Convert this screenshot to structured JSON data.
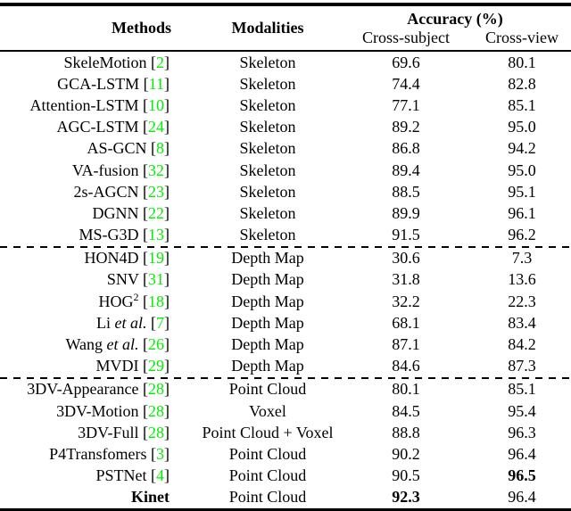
{
  "header": {
    "methods": "Methods",
    "modalities": "Modalities",
    "accuracy": "Accuracy (%)",
    "cross_subject": "Cross-subject",
    "cross_view": "Cross-view"
  },
  "citation_color": "#00f000",
  "cite_open": "[",
  "cite_close": "]",
  "et_al_text": "et al.",
  "groups": [
    {
      "rows": [
        {
          "name": "SkeleMotion",
          "cite": "2",
          "modality": "Skeleton",
          "cs": "69.6",
          "cv": "80.1"
        },
        {
          "name": "GCA-LSTM",
          "cite": "11",
          "modality": "Skeleton",
          "cs": "74.4",
          "cv": "82.8"
        },
        {
          "name": "Attention-LSTM",
          "cite": "10",
          "modality": "Skeleton",
          "cs": "77.1",
          "cv": "85.1"
        },
        {
          "name": "AGC-LSTM",
          "cite": "24",
          "modality": "Skeleton",
          "cs": "89.2",
          "cv": "95.0"
        },
        {
          "name": "AS-GCN",
          "cite": "8",
          "modality": "Skeleton",
          "cs": "86.8",
          "cv": "94.2"
        },
        {
          "name": "VA-fusion",
          "cite": "32",
          "modality": "Skeleton",
          "cs": "89.4",
          "cv": "95.0"
        },
        {
          "name": "2s-AGCN",
          "cite": "23",
          "modality": "Skeleton",
          "cs": "88.5",
          "cv": "95.1"
        },
        {
          "name": "DGNN",
          "cite": "22",
          "modality": "Skeleton",
          "cs": "89.9",
          "cv": "96.1"
        },
        {
          "name": "MS-G3D",
          "cite": "13",
          "modality": "Skeleton",
          "cs": "91.5",
          "cv": "96.2"
        }
      ]
    },
    {
      "rows": [
        {
          "name": "HON4D",
          "cite": "19",
          "modality": "Depth Map",
          "cs": "30.6",
          "cv": "7.3"
        },
        {
          "name": "SNV",
          "cite": "31",
          "modality": "Depth Map",
          "cs": "31.8",
          "cv": "13.6"
        },
        {
          "name": "HOG",
          "sup": "2",
          "cite": "18",
          "modality": "Depth Map",
          "cs": "32.2",
          "cv": "22.3"
        },
        {
          "name": "Li",
          "etal": true,
          "cite": "7",
          "modality": "Depth Map",
          "cs": "68.1",
          "cv": "83.4"
        },
        {
          "name": "Wang",
          "etal": true,
          "cite": "26",
          "modality": "Depth Map",
          "cs": "87.1",
          "cv": "84.2"
        },
        {
          "name": "MVDI",
          "cite": "29",
          "modality": "Depth Map",
          "cs": "84.6",
          "cv": "87.3"
        }
      ]
    },
    {
      "rows": [
        {
          "name": "3DV-Appearance",
          "cite": "28",
          "modality": "Point Cloud",
          "cs": "80.1",
          "cv": "85.1"
        },
        {
          "name": "3DV-Motion",
          "cite": "28",
          "modality": "Voxel",
          "cs": "84.5",
          "cv": "95.4"
        },
        {
          "name": "3DV-Full",
          "cite": "28",
          "modality": "Point Cloud + Voxel",
          "cs": "88.8",
          "cv": "96.3"
        },
        {
          "name": "P4Transfomers",
          "cite": "3",
          "modality": "Point Cloud",
          "cs": "90.2",
          "cv": "96.4"
        },
        {
          "name": "PSTNet",
          "cite": "4",
          "modality": "Point Cloud",
          "cs": "90.5",
          "cv": "96.5",
          "cv_bold": true
        },
        {
          "name": "Kinet",
          "bold_name": true,
          "modality": "Point Cloud",
          "cs": "92.3",
          "cs_bold": true,
          "cv": "96.4"
        }
      ]
    }
  ]
}
